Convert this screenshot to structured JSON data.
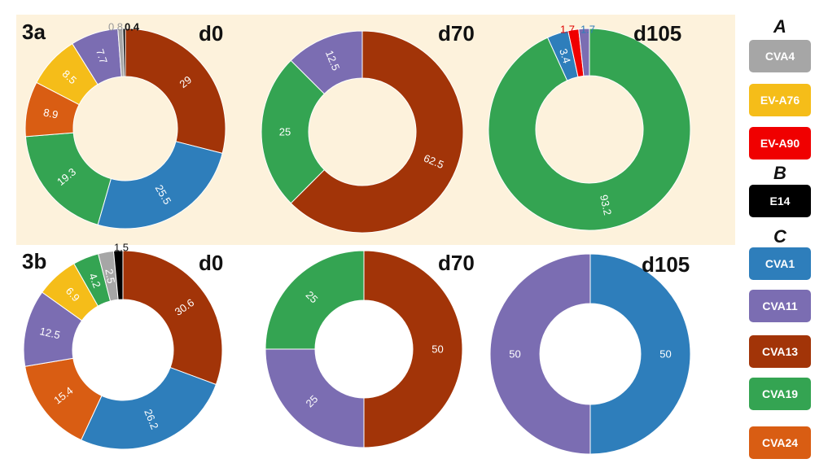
{
  "panels": [
    {
      "label": "3a"
    },
    {
      "label": "3b"
    }
  ],
  "legend": {
    "groups": [
      {
        "heading": "A",
        "items": [
          {
            "label": "CVA4",
            "color": "#a6a6a6"
          },
          {
            "label": "EV-A76",
            "color": "#f5bd19"
          },
          {
            "label": "EV-A90",
            "color": "#f00000"
          }
        ]
      },
      {
        "heading": "B",
        "items": [
          {
            "label": "E14",
            "color": "#000000"
          }
        ]
      },
      {
        "heading": "C",
        "items": [
          {
            "label": "CVA1",
            "color": "#2e7ebb"
          },
          {
            "label": "CVA11",
            "color": "#7b6db2"
          },
          {
            "label": "CVA13",
            "color": "#a23408"
          },
          {
            "label": "CVA19",
            "color": "#34a452"
          },
          {
            "label": "CVA24",
            "color": "#d95d13"
          }
        ]
      }
    ]
  },
  "chart_data": [
    {
      "type": "pie",
      "panel": "3a",
      "title": "d0",
      "slices": [
        {
          "series": "CVA13",
          "value": 29,
          "label": "29"
        },
        {
          "series": "CVA1",
          "value": 25.5,
          "label": "25.5"
        },
        {
          "series": "CVA19",
          "value": 19.3,
          "label": "19.3"
        },
        {
          "series": "CVA24",
          "value": 8.9,
          "label": "8.9"
        },
        {
          "series": "EV-A76",
          "value": 8.5,
          "label": "8.5"
        },
        {
          "series": "CVA11",
          "value": 7.7,
          "label": "7.7"
        },
        {
          "series": "CVA4",
          "value": 0.8,
          "label": "0.8"
        },
        {
          "series": "E14",
          "value": 0.4,
          "label": "0.4"
        }
      ]
    },
    {
      "type": "pie",
      "panel": "3a",
      "title": "d70",
      "slices": [
        {
          "series": "CVA13",
          "value": 62.5,
          "label": "62.5"
        },
        {
          "series": "CVA19",
          "value": 25,
          "label": "25"
        },
        {
          "series": "CVA11",
          "value": 12.5,
          "label": "12.5"
        }
      ]
    },
    {
      "type": "pie",
      "panel": "3a",
      "title": "d105",
      "slices": [
        {
          "series": "CVA19",
          "value": 93.2,
          "label": "93.2"
        },
        {
          "series": "CVA1",
          "value": 3.4,
          "label": "3.4"
        },
        {
          "series": "EV-A90",
          "value": 1.7,
          "label": "1.7"
        },
        {
          "series": "CVA11",
          "value": 1.7,
          "label": "1.7"
        }
      ]
    },
    {
      "type": "pie",
      "panel": "3b",
      "title": "d0",
      "slices": [
        {
          "series": "CVA13",
          "value": 30.6,
          "label": "30.6"
        },
        {
          "series": "CVA1",
          "value": 26.2,
          "label": "26.2"
        },
        {
          "series": "CVA24",
          "value": 15.4,
          "label": "15.4"
        },
        {
          "series": "CVA11",
          "value": 12.5,
          "label": "12.5"
        },
        {
          "series": "EV-A76",
          "value": 6.9,
          "label": "6.9"
        },
        {
          "series": "CVA19",
          "value": 4.2,
          "label": "4.2"
        },
        {
          "series": "CVA4",
          "value": 2.5,
          "label": "2.5"
        },
        {
          "series": "E14",
          "value": 1.5,
          "label": "1.5"
        }
      ]
    },
    {
      "type": "pie",
      "panel": "3b",
      "title": "d70",
      "slices": [
        {
          "series": "CVA13",
          "value": 50,
          "label": "50"
        },
        {
          "series": "CVA11",
          "value": 25,
          "label": "25"
        },
        {
          "series": "CVA19",
          "value": 25,
          "label": "25"
        }
      ]
    },
    {
      "type": "pie",
      "panel": "3b",
      "title": "d105",
      "slices": [
        {
          "series": "CVA1",
          "value": 50,
          "label": "50"
        },
        {
          "series": "CVA11",
          "value": 50,
          "label": "50"
        }
      ]
    }
  ]
}
